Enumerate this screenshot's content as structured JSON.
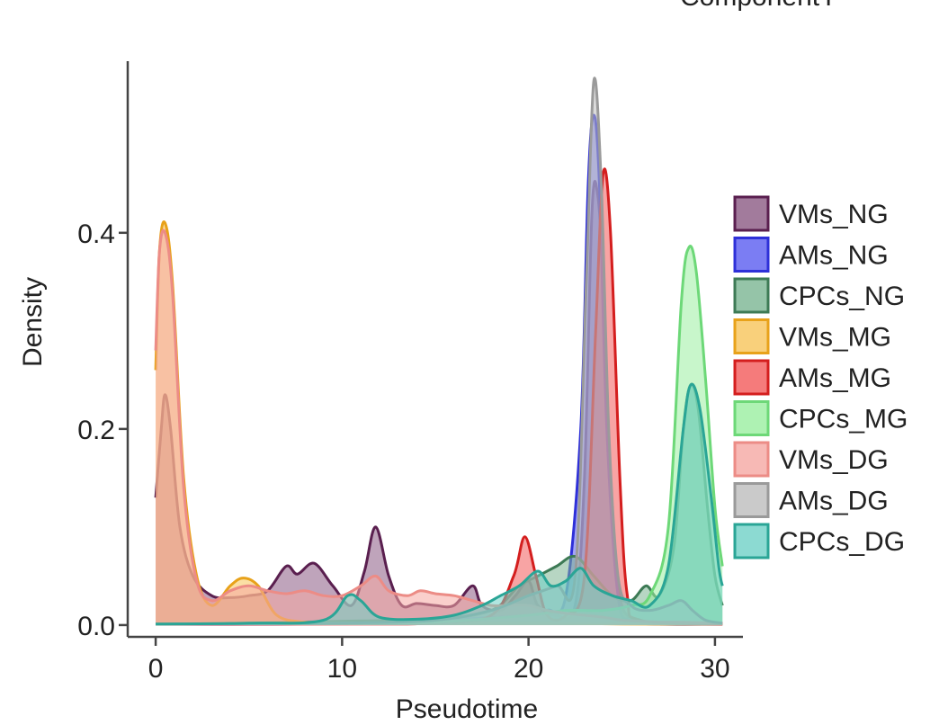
{
  "header": {
    "partial_title": "ComponentY"
  },
  "chart_data": {
    "type": "area",
    "title": "",
    "xlabel": "Pseudotime",
    "ylabel": "Density",
    "xlim": [
      -1.5,
      31.5
    ],
    "ylim": [
      -0.012,
      0.575
    ],
    "x_ticks": [
      0,
      10,
      20,
      30
    ],
    "y_ticks": [
      0.0,
      0.2,
      0.4
    ],
    "y_tick_labels": [
      "0.0",
      "0.2",
      "0.4"
    ],
    "grid": false,
    "legend_position": "right",
    "series": [
      {
        "name": "VMs_NG",
        "fill": "#8b5a83",
        "stroke": "#5a1f4f",
        "points": [
          [
            0,
            0.13
          ],
          [
            0.3,
            0.2
          ],
          [
            0.5,
            0.235
          ],
          [
            0.8,
            0.2
          ],
          [
            1.3,
            0.1
          ],
          [
            2,
            0.05
          ],
          [
            3,
            0.03
          ],
          [
            4,
            0.028
          ],
          [
            5,
            0.03
          ],
          [
            6,
            0.035
          ],
          [
            7,
            0.06
          ],
          [
            7.6,
            0.052
          ],
          [
            8.5,
            0.063
          ],
          [
            9.5,
            0.04
          ],
          [
            10.5,
            0.02
          ],
          [
            11.2,
            0.055
          ],
          [
            11.8,
            0.1
          ],
          [
            12.5,
            0.05
          ],
          [
            13.2,
            0.02
          ],
          [
            14,
            0.022
          ],
          [
            15,
            0.02
          ],
          [
            16,
            0.02
          ],
          [
            17,
            0.04
          ],
          [
            17.5,
            0.02
          ],
          [
            18.5,
            0.015
          ],
          [
            19.3,
            0.03
          ],
          [
            20,
            0.045
          ],
          [
            20.5,
            0.02
          ],
          [
            21.5,
            0.01
          ],
          [
            22.5,
            0.02
          ],
          [
            23,
            0.15
          ],
          [
            23.4,
            0.42
          ],
          [
            23.7,
            0.44
          ],
          [
            24,
            0.35
          ],
          [
            24.5,
            0.1
          ],
          [
            25,
            0.02
          ],
          [
            26,
            0.005
          ],
          [
            27,
            0.002
          ],
          [
            28,
            0.001
          ],
          [
            30.4,
            0.001
          ]
        ]
      },
      {
        "name": "AMs_NG",
        "fill": "#5a5cf0",
        "stroke": "#2e30d8",
        "points": [
          [
            0,
            0.001
          ],
          [
            5,
            0.001
          ],
          [
            10,
            0.002
          ],
          [
            15,
            0.005
          ],
          [
            20,
            0.01
          ],
          [
            21,
            0.015
          ],
          [
            22,
            0.03
          ],
          [
            22.8,
            0.2
          ],
          [
            23.2,
            0.45
          ],
          [
            23.5,
            0.52
          ],
          [
            23.8,
            0.45
          ],
          [
            24.2,
            0.2
          ],
          [
            24.8,
            0.03
          ],
          [
            25.5,
            0.005
          ],
          [
            27,
            0.001
          ],
          [
            30.4,
            0.001
          ]
        ]
      },
      {
        "name": "CPCs_NG",
        "fill": "#7bb592",
        "stroke": "#3d7a55",
        "points": [
          [
            0,
            0.001
          ],
          [
            5,
            0.002
          ],
          [
            10,
            0.004
          ],
          [
            15,
            0.006
          ],
          [
            18,
            0.015
          ],
          [
            19.5,
            0.04
          ],
          [
            20.5,
            0.05
          ],
          [
            21.5,
            0.06
          ],
          [
            22.5,
            0.07
          ],
          [
            23.5,
            0.05
          ],
          [
            24.5,
            0.03
          ],
          [
            25.5,
            0.025
          ],
          [
            26.3,
            0.04
          ],
          [
            27,
            0.03
          ],
          [
            27.8,
            0.08
          ],
          [
            28.3,
            0.2
          ],
          [
            28.7,
            0.245
          ],
          [
            29.1,
            0.22
          ],
          [
            29.6,
            0.12
          ],
          [
            30,
            0.05
          ],
          [
            30.4,
            0.02
          ]
        ]
      },
      {
        "name": "VMs_MG",
        "fill": "#f7c45a",
        "stroke": "#e8a21a",
        "points": [
          [
            0,
            0.26
          ],
          [
            0.2,
            0.38
          ],
          [
            0.5,
            0.41
          ],
          [
            0.9,
            0.35
          ],
          [
            1.5,
            0.15
          ],
          [
            2.2,
            0.05
          ],
          [
            3,
            0.02
          ],
          [
            4,
            0.04
          ],
          [
            4.7,
            0.048
          ],
          [
            5.5,
            0.04
          ],
          [
            6.5,
            0.01
          ],
          [
            8,
            0.003
          ],
          [
            10,
            0.002
          ],
          [
            15,
            0.002
          ],
          [
            20,
            0.002
          ],
          [
            25,
            0.001
          ],
          [
            30.4,
            0.001
          ]
        ]
      },
      {
        "name": "AMs_MG",
        "fill": "#f25a5a",
        "stroke": "#d41e1e",
        "points": [
          [
            0,
            0.001
          ],
          [
            10,
            0.001
          ],
          [
            15,
            0.002
          ],
          [
            18,
            0.01
          ],
          [
            19.2,
            0.05
          ],
          [
            19.8,
            0.09
          ],
          [
            20.4,
            0.05
          ],
          [
            21,
            0.01
          ],
          [
            22,
            0.01
          ],
          [
            23,
            0.05
          ],
          [
            23.6,
            0.3
          ],
          [
            24,
            0.46
          ],
          [
            24.4,
            0.4
          ],
          [
            24.9,
            0.15
          ],
          [
            25.3,
            0.03
          ],
          [
            26,
            0.005
          ],
          [
            30.4,
            0.001
          ]
        ]
      },
      {
        "name": "CPCs_MG",
        "fill": "#9aefa0",
        "stroke": "#6dd878",
        "points": [
          [
            0,
            0.001
          ],
          [
            10,
            0.002
          ],
          [
            15,
            0.003
          ],
          [
            20,
            0.01
          ],
          [
            22,
            0.015
          ],
          [
            24,
            0.015
          ],
          [
            25.5,
            0.02
          ],
          [
            26.5,
            0.03
          ],
          [
            27.5,
            0.1
          ],
          [
            28.2,
            0.33
          ],
          [
            28.6,
            0.385
          ],
          [
            29,
            0.36
          ],
          [
            29.5,
            0.25
          ],
          [
            30,
            0.12
          ],
          [
            30.4,
            0.06
          ]
        ]
      },
      {
        "name": "VMs_DG",
        "fill": "#f5a7a3",
        "stroke": "#ec8c86",
        "points": [
          [
            0,
            0.28
          ],
          [
            0.2,
            0.38
          ],
          [
            0.5,
            0.4
          ],
          [
            0.9,
            0.34
          ],
          [
            1.5,
            0.14
          ],
          [
            2.2,
            0.045
          ],
          [
            3,
            0.025
          ],
          [
            4,
            0.035
          ],
          [
            5,
            0.04
          ],
          [
            6,
            0.035
          ],
          [
            7,
            0.032
          ],
          [
            8,
            0.035
          ],
          [
            9,
            0.03
          ],
          [
            10,
            0.03
          ],
          [
            11,
            0.04
          ],
          [
            11.8,
            0.05
          ],
          [
            12.5,
            0.035
          ],
          [
            13.5,
            0.03
          ],
          [
            14.2,
            0.035
          ],
          [
            15,
            0.032
          ],
          [
            16,
            0.03
          ],
          [
            17,
            0.025
          ],
          [
            18,
            0.02
          ],
          [
            19,
            0.02
          ],
          [
            20,
            0.02
          ],
          [
            21,
            0.015
          ],
          [
            22,
            0.012
          ],
          [
            23,
            0.01
          ],
          [
            24,
            0.008
          ],
          [
            25,
            0.005
          ],
          [
            26,
            0.004
          ],
          [
            27,
            0.003
          ],
          [
            28,
            0.003
          ],
          [
            30.4,
            0.002
          ]
        ]
      },
      {
        "name": "AMs_DG",
        "fill": "#bdbdbd",
        "stroke": "#9a9a9a",
        "points": [
          [
            0,
            0.001
          ],
          [
            10,
            0.002
          ],
          [
            15,
            0.005
          ],
          [
            18,
            0.015
          ],
          [
            20,
            0.03
          ],
          [
            21.5,
            0.04
          ],
          [
            22.5,
            0.05
          ],
          [
            23.1,
            0.35
          ],
          [
            23.5,
            0.555
          ],
          [
            23.9,
            0.45
          ],
          [
            24.3,
            0.2
          ],
          [
            24.8,
            0.05
          ],
          [
            25.5,
            0.02
          ],
          [
            26.5,
            0.015
          ],
          [
            27.5,
            0.02
          ],
          [
            28.2,
            0.025
          ],
          [
            28.8,
            0.015
          ],
          [
            29.5,
            0.005
          ],
          [
            30.4,
            0.002
          ]
        ]
      },
      {
        "name": "CPCs_DG",
        "fill": "#6fd1c7",
        "stroke": "#2aa596",
        "points": [
          [
            0,
            0.001
          ],
          [
            5,
            0.002
          ],
          [
            9,
            0.005
          ],
          [
            10.3,
            0.03
          ],
          [
            11,
            0.025
          ],
          [
            12,
            0.008
          ],
          [
            14,
            0.006
          ],
          [
            16,
            0.01
          ],
          [
            17.5,
            0.02
          ],
          [
            18.5,
            0.03
          ],
          [
            19.5,
            0.04
          ],
          [
            20.5,
            0.055
          ],
          [
            21.2,
            0.04
          ],
          [
            22,
            0.045
          ],
          [
            22.8,
            0.058
          ],
          [
            23.5,
            0.04
          ],
          [
            24.5,
            0.03
          ],
          [
            25.5,
            0.025
          ],
          [
            26.5,
            0.02
          ],
          [
            27.5,
            0.06
          ],
          [
            28.3,
            0.2
          ],
          [
            28.7,
            0.245
          ],
          [
            29.2,
            0.22
          ],
          [
            29.8,
            0.13
          ],
          [
            30.2,
            0.06
          ],
          [
            30.4,
            0.04
          ]
        ]
      }
    ]
  }
}
